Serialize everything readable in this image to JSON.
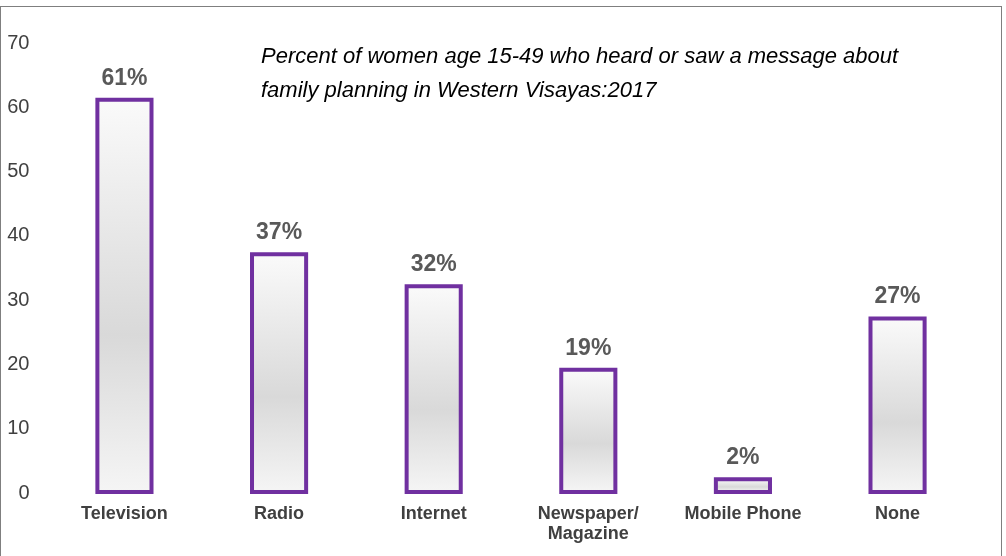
{
  "chart_data": {
    "type": "bar",
    "title": "Percent of women age 15-49 who heard or saw a message about family planning in Western Visayas:2017",
    "categories": [
      "Television",
      "Radio",
      "Internet",
      "Newspaper/Magazine",
      "Mobile Phone",
      "None"
    ],
    "values": [
      61,
      37,
      32,
      19,
      2,
      27
    ],
    "value_labels": [
      "61%",
      "37%",
      "32%",
      "19%",
      "2%",
      "27%"
    ],
    "color": "#7030a0",
    "ylim": [
      0,
      70
    ],
    "yticks": [
      0,
      10,
      20,
      30,
      40,
      50,
      60,
      70
    ],
    "grid": false
  }
}
